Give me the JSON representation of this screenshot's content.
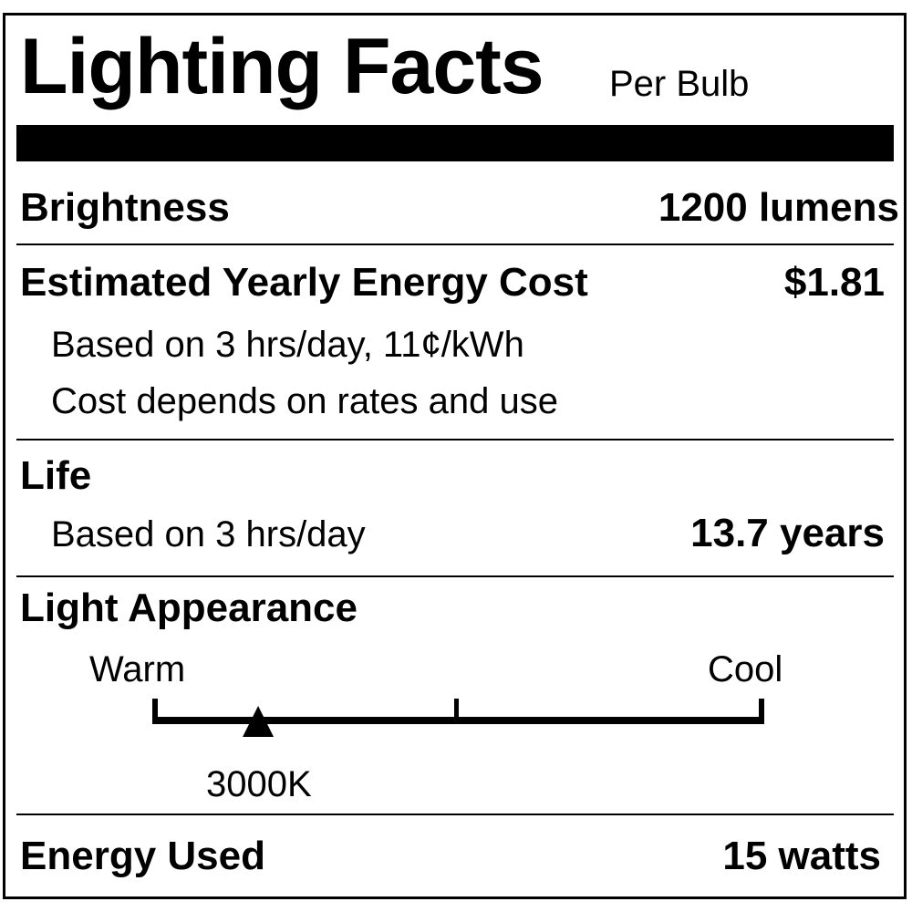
{
  "title": "Lighting Facts",
  "subtitle": "Per Bulb",
  "brightness": {
    "label": "Brightness",
    "value": "1200 lumens"
  },
  "energy_cost": {
    "label": "Estimated Yearly Energy Cost",
    "value": "$1.81",
    "note1": "Based on 3 hrs/day, 11¢/kWh",
    "note2": "Cost depends on rates and use"
  },
  "life": {
    "label": "Life",
    "note": "Based on 3 hrs/day",
    "value": "13.7 years"
  },
  "appearance": {
    "label": "Light Appearance",
    "warm": "Warm",
    "cool": "Cool",
    "marker": "3000K",
    "marker_fraction": 0.17
  },
  "energy_used": {
    "label": "Energy Used",
    "value": "15 watts"
  }
}
